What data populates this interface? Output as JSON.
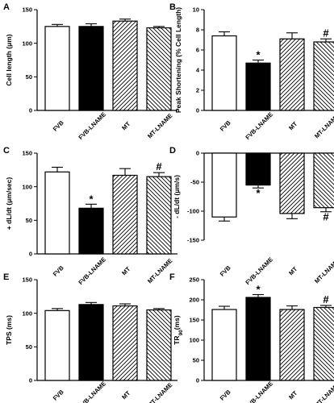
{
  "chart_data": [
    {
      "panel": "A",
      "type": "bar",
      "categories": [
        "FVB",
        "FVB-LNAME",
        "MT",
        "MT-LNAME"
      ],
      "values": [
        125,
        125,
        133,
        123
      ],
      "errors": [
        3,
        4,
        3,
        2
      ],
      "ylabel": "Cell length (μm)",
      "ylim": [
        0,
        150
      ],
      "yticks": [
        0,
        50,
        100,
        150
      ],
      "annotations": [
        "",
        "",
        "",
        ""
      ]
    },
    {
      "panel": "B",
      "type": "bar",
      "categories": [
        "FVB",
        "FVB-LNAME",
        "MT",
        "MT-LNAME"
      ],
      "values": [
        7.4,
        4.7,
        7.1,
        6.8
      ],
      "errors": [
        0.4,
        0.3,
        0.6,
        0.3
      ],
      "ylabel": "Peak Shortening (% Cell Length)",
      "ylim": [
        0,
        10
      ],
      "yticks": [
        0,
        2,
        4,
        6,
        8,
        10
      ],
      "annotations": [
        "",
        "*",
        "",
        "#"
      ]
    },
    {
      "panel": "C",
      "type": "bar",
      "categories": [
        "FVB",
        "FVB-LNAME",
        "MT",
        "MT-LNAME"
      ],
      "values": [
        122,
        68,
        117,
        115
      ],
      "errors": [
        7,
        6,
        10,
        6
      ],
      "ylabel": "+ dL/dt (μm/sec)",
      "ylim": [
        0,
        150
      ],
      "yticks": [
        0,
        50,
        100,
        150
      ],
      "annotations": [
        "",
        "*",
        "",
        "#"
      ]
    },
    {
      "panel": "D",
      "type": "bar",
      "categories": [
        "FVB",
        "FVB-LNAME",
        "MT",
        "MT-LNAME"
      ],
      "values": [
        -110,
        -55,
        -104,
        -94
      ],
      "errors": [
        7,
        5,
        9,
        7
      ],
      "ylabel": "- dL/dt (μm/s)",
      "ylim": [
        -150,
        0
      ],
      "yticks": [
        0,
        -50,
        -100,
        -150
      ],
      "annotations": [
        "",
        "*",
        "",
        "#"
      ]
    },
    {
      "panel": "E",
      "type": "bar",
      "categories": [
        "FVB",
        "FVB-LNAME",
        "MT",
        "MT-LNAME"
      ],
      "values": [
        104,
        113,
        111,
        105
      ],
      "errors": [
        3,
        3,
        3,
        2
      ],
      "ylabel": "TPS (ms)",
      "ylim": [
        0,
        150
      ],
      "yticks": [
        0,
        50,
        100,
        150
      ],
      "annotations": [
        "",
        "",
        "",
        ""
      ]
    },
    {
      "panel": "F",
      "type": "bar",
      "categories": [
        "FVB",
        "FVB-LNAME",
        "MT",
        "MT-LNAME"
      ],
      "values": [
        176,
        206,
        176,
        181
      ],
      "errors": [
        8,
        7,
        9,
        5
      ],
      "ylabel": "TR90(ms)",
      "ylim": [
        0,
        250
      ],
      "yticks": [
        0,
        50,
        100,
        150,
        200,
        250
      ],
      "annotations": [
        "",
        "*",
        "",
        "#"
      ]
    }
  ]
}
